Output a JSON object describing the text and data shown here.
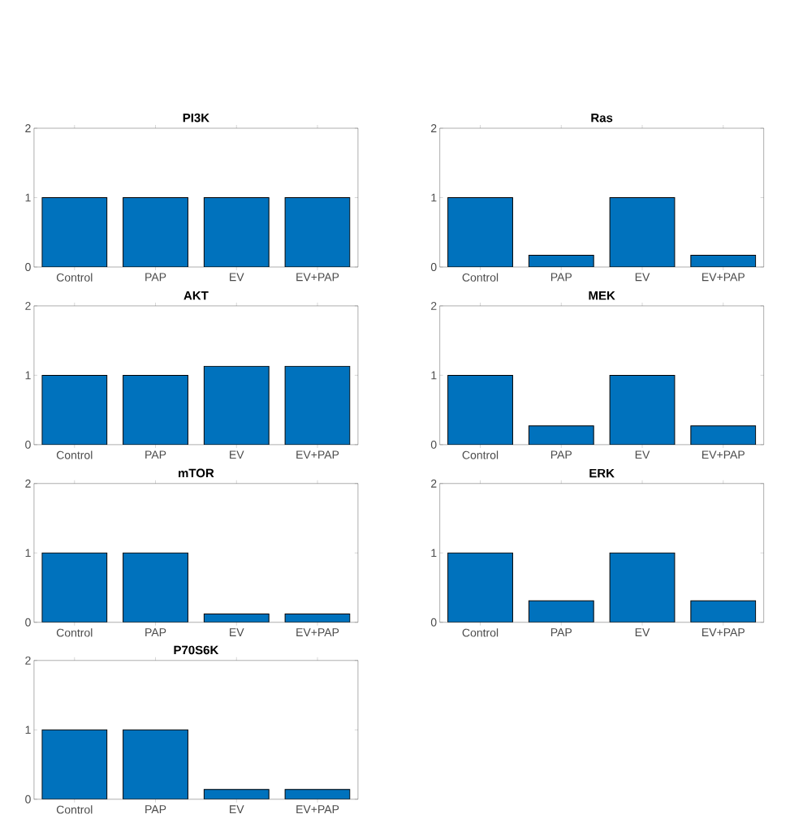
{
  "chart_data": [
    {
      "type": "bar",
      "title": "PI3K",
      "categories": [
        "Control",
        "PAP",
        "EV",
        "EV+PAP"
      ],
      "values": [
        1,
        1,
        1,
        1
      ],
      "color": "#0072bd",
      "ylim": [
        0,
        2
      ],
      "yticks": [
        0,
        1,
        2
      ]
    },
    {
      "type": "bar",
      "title": "Ras",
      "categories": [
        "Control",
        "PAP",
        "EV",
        "EV+PAP"
      ],
      "values": [
        1,
        0.17,
        1,
        0.17
      ],
      "color": "#0072bd",
      "ylim": [
        0,
        2
      ],
      "yticks": [
        0,
        1,
        2
      ]
    },
    {
      "type": "bar",
      "title": "AKT",
      "categories": [
        "Control",
        "PAP",
        "EV",
        "EV+PAP"
      ],
      "values": [
        1,
        1,
        1.13,
        1.13
      ],
      "color": "#0072bd",
      "ylim": [
        0,
        2
      ],
      "yticks": [
        0,
        1,
        2
      ]
    },
    {
      "type": "bar",
      "title": "MEK",
      "categories": [
        "Control",
        "PAP",
        "EV",
        "EV+PAP"
      ],
      "values": [
        1,
        0.27,
        1,
        0.27
      ],
      "color": "#0072bd",
      "ylim": [
        0,
        2
      ],
      "yticks": [
        0,
        1,
        2
      ]
    },
    {
      "type": "bar",
      "title": "mTOR",
      "categories": [
        "Control",
        "PAP",
        "EV",
        "EV+PAP"
      ],
      "values": [
        1,
        1,
        0.12,
        0.12
      ],
      "color": "#0072bd",
      "ylim": [
        0,
        2
      ],
      "yticks": [
        0,
        1,
        2
      ]
    },
    {
      "type": "bar",
      "title": "ERK",
      "categories": [
        "Control",
        "PAP",
        "EV",
        "EV+PAP"
      ],
      "values": [
        1,
        0.31,
        1,
        0.31
      ],
      "color": "#0072bd",
      "ylim": [
        0,
        2
      ],
      "yticks": [
        0,
        1,
        2
      ]
    },
    {
      "type": "bar",
      "title": "P70S6K",
      "categories": [
        "Control",
        "PAP",
        "EV",
        "EV+PAP"
      ],
      "values": [
        1,
        1,
        0.14,
        0.14
      ],
      "color": "#0072bd",
      "ylim": [
        0,
        2
      ],
      "yticks": [
        0,
        1,
        2
      ]
    }
  ]
}
